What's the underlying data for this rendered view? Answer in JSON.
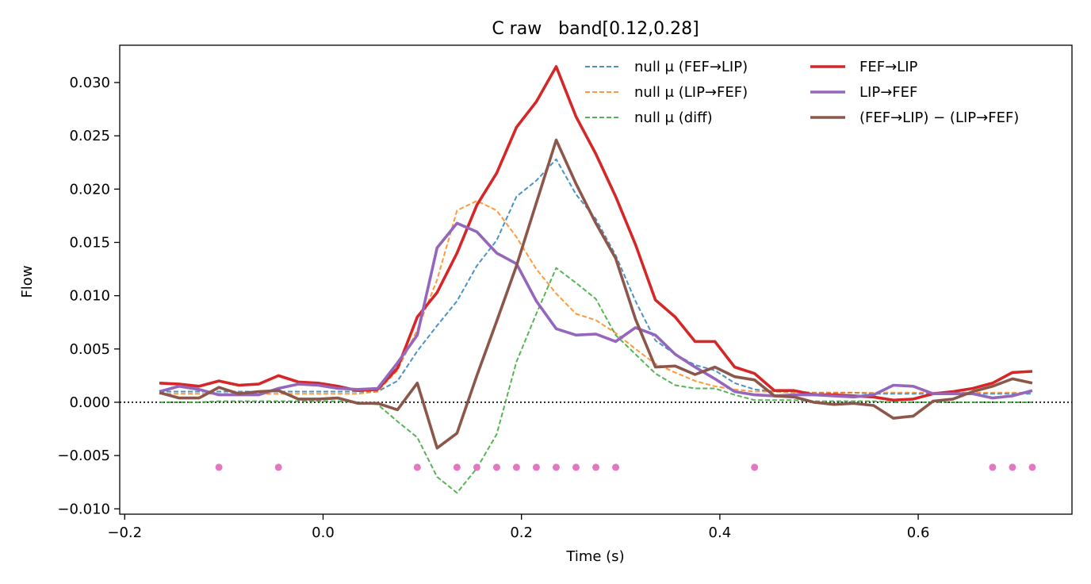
{
  "chart_data": {
    "type": "line",
    "title": "C raw   band[0.12,0.28]",
    "xlabel": "Time (s)",
    "ylabel": "Flow",
    "xlim": [
      -0.205,
      0.755
    ],
    "ylim": [
      -0.0105,
      0.0335
    ],
    "xticks": [
      -0.2,
      0.0,
      0.2,
      0.4,
      0.6
    ],
    "xtick_labels": [
      "−0.2",
      "0.0",
      "0.2",
      "0.4",
      "0.6"
    ],
    "yticks": [
      -0.01,
      -0.005,
      0.0,
      0.005,
      0.01,
      0.015,
      0.02,
      0.025,
      0.03
    ],
    "ytick_labels": [
      "−0.010",
      "−0.005",
      "0.000",
      "0.005",
      "0.010",
      "0.015",
      "0.020",
      "0.025",
      "0.030"
    ],
    "grid": false,
    "legend_position": "top-right",
    "legend_columns": 2,
    "zero_line": {
      "y": 0,
      "style": "dotted",
      "color": "#000000"
    },
    "x": [
      -0.165,
      -0.145,
      -0.125,
      -0.105,
      -0.085,
      -0.065,
      -0.045,
      -0.025,
      -0.005,
      0.015,
      0.035,
      0.055,
      0.075,
      0.095,
      0.115,
      0.135,
      0.155,
      0.175,
      0.195,
      0.215,
      0.235,
      0.255,
      0.275,
      0.295,
      0.315,
      0.335,
      0.355,
      0.375,
      0.395,
      0.415,
      0.435,
      0.455,
      0.475,
      0.495,
      0.515,
      0.535,
      0.555,
      0.575,
      0.595,
      0.615,
      0.635,
      0.655,
      0.675,
      0.695,
      0.715
    ],
    "series": [
      {
        "name": "null μ (FEF→LIP)",
        "color": "#1f77b4",
        "style": "dashed",
        "values": [
          0.001,
          0.001,
          0.001,
          0.001,
          0.001,
          0.001,
          0.001,
          0.001,
          0.001,
          0.001,
          0.001,
          0.001,
          0.002,
          0.0048,
          0.0072,
          0.0095,
          0.0128,
          0.0152,
          0.0193,
          0.0208,
          0.0228,
          0.0195,
          0.0172,
          0.0138,
          0.0095,
          0.0058,
          0.0045,
          0.0035,
          0.003,
          0.0018,
          0.0012,
          0.001,
          0.001,
          0.0009,
          0.0009,
          0.0009,
          0.0008,
          0.0008,
          0.0008,
          0.0008,
          0.0008,
          0.0008,
          0.0008,
          0.0008,
          0.0008
        ]
      },
      {
        "name": "null μ (LIP→FEF)",
        "color": "#ff7f0e",
        "style": "dashed",
        "values": [
          0.0008,
          0.0008,
          0.0008,
          0.0008,
          0.0008,
          0.0008,
          0.0008,
          0.0008,
          0.0008,
          0.0008,
          0.0008,
          0.001,
          0.003,
          0.0068,
          0.0115,
          0.018,
          0.0189,
          0.018,
          0.0155,
          0.0125,
          0.0102,
          0.0083,
          0.0077,
          0.0065,
          0.005,
          0.0036,
          0.0028,
          0.002,
          0.0015,
          0.0012,
          0.001,
          0.001,
          0.0009,
          0.0009,
          0.0009,
          0.0009,
          0.0009,
          0.0009,
          0.0009,
          0.0009,
          0.0009,
          0.0009,
          0.0009,
          0.0009,
          0.0009
        ]
      },
      {
        "name": "null μ (diff)",
        "color": "#2ca02c",
        "style": "dashed",
        "values": [
          0.0,
          0.0,
          0.0,
          0.0001,
          0.0001,
          0.0001,
          0.0001,
          0.0001,
          0.0001,
          0.0001,
          0.0,
          -0.0002,
          -0.0018,
          -0.0033,
          -0.007,
          -0.0085,
          -0.0062,
          -0.003,
          0.0038,
          0.0083,
          0.0126,
          0.0112,
          0.0097,
          0.0063,
          0.0045,
          0.0027,
          0.0016,
          0.0013,
          0.0013,
          0.0007,
          0.0002,
          0.0002,
          0.0002,
          0.0001,
          0.0001,
          0.0001,
          0.0001,
          0.0,
          0.0,
          0.0,
          0.0,
          0.0,
          0.0,
          0.0,
          0.0
        ]
      },
      {
        "name": "FEF→LIP",
        "color": "#d62728",
        "style": "solid",
        "values": [
          0.0018,
          0.0017,
          0.0015,
          0.002,
          0.0016,
          0.0017,
          0.0025,
          0.0019,
          0.0018,
          0.0015,
          0.0011,
          0.0012,
          0.0032,
          0.008,
          0.0103,
          0.014,
          0.0185,
          0.0215,
          0.0258,
          0.0282,
          0.0315,
          0.0268,
          0.0233,
          0.0193,
          0.0148,
          0.0096,
          0.008,
          0.0057,
          0.0057,
          0.0033,
          0.0027,
          0.0011,
          0.0011,
          0.0007,
          0.0007,
          0.0006,
          0.0005,
          0.0002,
          0.0003,
          0.0008,
          0.001,
          0.0013,
          0.0018,
          0.0028,
          0.0029
        ]
      },
      {
        "name": "LIP→FEF",
        "color": "#9467bd",
        "style": "solid",
        "values": [
          0.001,
          0.0015,
          0.0012,
          0.0007,
          0.0007,
          0.0007,
          0.0013,
          0.0017,
          0.0016,
          0.0013,
          0.0012,
          0.0013,
          0.0037,
          0.0063,
          0.0145,
          0.0168,
          0.016,
          0.014,
          0.013,
          0.0095,
          0.0069,
          0.0063,
          0.0064,
          0.0057,
          0.007,
          0.0063,
          0.0045,
          0.0033,
          0.0022,
          0.001,
          0.0007,
          0.0006,
          0.0007,
          0.0007,
          0.0006,
          0.0005,
          0.0007,
          0.0016,
          0.0015,
          0.0008,
          0.0008,
          0.0008,
          0.0004,
          0.0006,
          0.0011
        ]
      },
      {
        "name": "(FEF→LIP) − (LIP→FEF)",
        "color": "#8c564b",
        "style": "solid",
        "values": [
          0.0009,
          0.0004,
          0.0004,
          0.0014,
          0.0008,
          0.001,
          0.0011,
          0.0003,
          0.0003,
          0.0004,
          -0.0001,
          -0.0001,
          -0.0007,
          0.0018,
          -0.0043,
          -0.0029,
          0.0025,
          0.0076,
          0.0128,
          0.0187,
          0.0246,
          0.0205,
          0.0168,
          0.0135,
          0.0078,
          0.0033,
          0.0034,
          0.0026,
          0.0033,
          0.0024,
          0.0021,
          0.0006,
          0.0005,
          0.0,
          -0.0002,
          -0.0001,
          -0.0003,
          -0.0015,
          -0.0013,
          0.0001,
          0.0003,
          0.001,
          0.0015,
          0.0022,
          0.0018
        ]
      }
    ],
    "markers": {
      "color": "#e377c2",
      "y": -0.0061,
      "x": [
        -0.105,
        -0.045,
        0.095,
        0.135,
        0.155,
        0.175,
        0.195,
        0.215,
        0.235,
        0.255,
        0.275,
        0.295,
        0.435,
        0.675,
        0.695,
        0.715
      ]
    }
  }
}
